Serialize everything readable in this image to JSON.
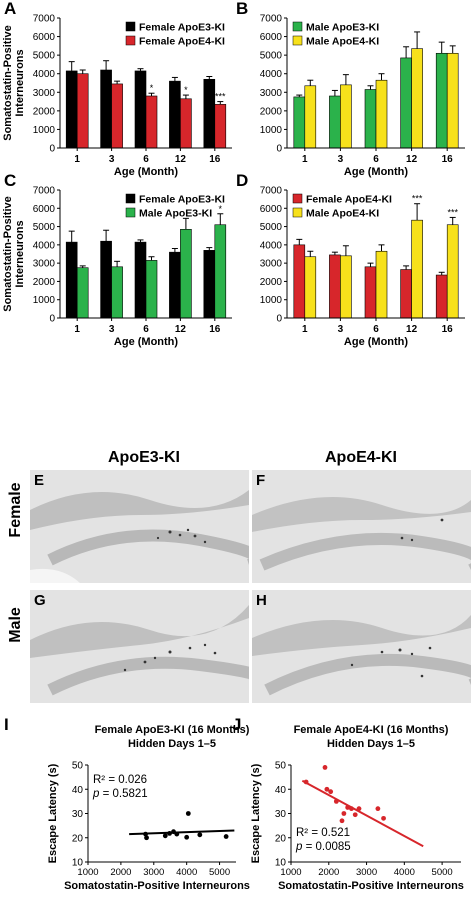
{
  "colors": {
    "female_e3": "#000000",
    "female_e4": "#d7262b",
    "male_e3": "#2bb24b",
    "male_e4": "#f7e11b",
    "scatter_e4": "#d7262b",
    "tissue_bg": "#e4e4e4"
  },
  "y_axis_label_line1": "Somatostatin-Positive",
  "y_axis_label_line2": "Interneurons",
  "micrographs": {
    "col_e3": "ApoE3-KI",
    "col_e4": "ApoE4-KI",
    "row_female": "Female",
    "row_male": "Male",
    "panels": [
      {
        "letter": "E",
        "row": "female",
        "col": "e3"
      },
      {
        "letter": "F",
        "row": "female",
        "col": "e4"
      },
      {
        "letter": "G",
        "row": "male",
        "col": "e3"
      },
      {
        "letter": "H",
        "row": "male",
        "col": "e4"
      }
    ]
  },
  "chart_data": [
    {
      "panel": "A",
      "type": "bar",
      "categories": [
        "1",
        "3",
        "6",
        "12",
        "16"
      ],
      "xlabel": "Age (Month)",
      "ylabel": "Somatostatin-Positive Interneurons",
      "ylim": [
        0,
        7000
      ],
      "yticks": [
        0,
        1000,
        2000,
        3000,
        4000,
        5000,
        6000,
        7000
      ],
      "legend": "top-right",
      "series": [
        {
          "name": "Female ApoE3-KI",
          "color_key": "female_e3",
          "values": [
            4150,
            4200,
            4150,
            3600,
            3700
          ],
          "errors": [
            500,
            500,
            120,
            200,
            150
          ]
        },
        {
          "name": "Female ApoE4-KI",
          "color_key": "female_e4",
          "values": [
            4000,
            3450,
            2800,
            2650,
            2350
          ],
          "errors": [
            200,
            150,
            150,
            200,
            150
          ]
        }
      ],
      "annotations": [
        {
          "category": "6",
          "series": 1,
          "text": "*"
        },
        {
          "category": "12",
          "series": 1,
          "text": "*"
        },
        {
          "category": "16",
          "series": 1,
          "text": "***"
        }
      ]
    },
    {
      "panel": "B",
      "type": "bar",
      "categories": [
        "1",
        "3",
        "6",
        "12",
        "16"
      ],
      "xlabel": "Age (Month)",
      "ylabel": "",
      "ylim": [
        0,
        7000
      ],
      "yticks": [
        0,
        1000,
        2000,
        3000,
        4000,
        5000,
        6000,
        7000
      ],
      "legend": "top-left",
      "series": [
        {
          "name": "Male ApoE3-KI",
          "color_key": "male_e3",
          "values": [
            2750,
            2800,
            3150,
            4850,
            5100
          ],
          "errors": [
            100,
            300,
            200,
            600,
            600
          ]
        },
        {
          "name": "Male ApoE4-KI",
          "color_key": "male_e4",
          "values": [
            3350,
            3400,
            3650,
            5350,
            5100
          ],
          "errors": [
            300,
            550,
            350,
            900,
            400
          ]
        }
      ],
      "annotations": []
    },
    {
      "panel": "C",
      "type": "bar",
      "categories": [
        "1",
        "3",
        "6",
        "12",
        "16"
      ],
      "xlabel": "Age (Month)",
      "ylabel": "Somatostatin-Positive Interneurons",
      "ylim": [
        0,
        7000
      ],
      "yticks": [
        0,
        1000,
        2000,
        3000,
        4000,
        5000,
        6000,
        7000
      ],
      "legend": "top-right",
      "series": [
        {
          "name": "Female ApoE3-KI",
          "color_key": "female_e3",
          "values": [
            4150,
            4200,
            4150,
            3600,
            3700
          ],
          "errors": [
            600,
            600,
            120,
            200,
            150
          ]
        },
        {
          "name": "Male ApoE3-KI",
          "color_key": "male_e3",
          "values": [
            2750,
            2800,
            3150,
            4850,
            5100
          ],
          "errors": [
            100,
            300,
            200,
            600,
            600
          ]
        }
      ],
      "annotations": [
        {
          "category": "16",
          "series": 1,
          "text": "*"
        }
      ]
    },
    {
      "panel": "D",
      "type": "bar",
      "categories": [
        "1",
        "3",
        "6",
        "12",
        "16"
      ],
      "xlabel": "Age (Month)",
      "ylabel": "",
      "ylim": [
        0,
        7000
      ],
      "yticks": [
        0,
        1000,
        2000,
        3000,
        4000,
        5000,
        6000,
        7000
      ],
      "legend": "top-left",
      "series": [
        {
          "name": "Female ApoE4-KI",
          "color_key": "female_e4",
          "values": [
            4000,
            3450,
            2800,
            2650,
            2350
          ],
          "errors": [
            300,
            150,
            200,
            200,
            150
          ]
        },
        {
          "name": "Male ApoE4-KI",
          "color_key": "male_e4",
          "values": [
            3350,
            3400,
            3650,
            5350,
            5100
          ],
          "errors": [
            300,
            550,
            350,
            900,
            400
          ]
        }
      ],
      "annotations": [
        {
          "category": "12",
          "series": 1,
          "text": "***"
        },
        {
          "category": "16",
          "series": 1,
          "text": "***"
        }
      ]
    },
    {
      "panel": "I",
      "type": "scatter",
      "title_line1": "Female ApoE3-KI (16 Months)",
      "title_line2": "Hidden Days 1–5",
      "xlabel": "Somatostatin-Positive Interneurons",
      "ylabel": "Escape Latency (s)",
      "xlim": [
        1000,
        5500
      ],
      "xticks": [
        1000,
        2000,
        3000,
        4000,
        5000
      ],
      "ylim": [
        10,
        50
      ],
      "yticks": [
        10,
        20,
        30,
        40,
        50
      ],
      "color_key": "female_e3",
      "stat_r2": "R² = 0.026",
      "stat_p_prefix": "p",
      "stat_p_value": " = 0.5821",
      "points": [
        [
          2750,
          21.5
        ],
        [
          2780,
          20
        ],
        [
          3350,
          20.8
        ],
        [
          3480,
          21.8
        ],
        [
          3600,
          22.5
        ],
        [
          3700,
          21.5
        ],
        [
          4000,
          20.2
        ],
        [
          4050,
          30
        ],
        [
          4400,
          21.2
        ],
        [
          5200,
          20.5
        ]
      ],
      "fit": [
        [
          2250,
          21.5
        ],
        [
          5450,
          23.0
        ]
      ]
    },
    {
      "panel": "J",
      "type": "scatter",
      "title_line1": "Female ApoE4-KI (16 Months)",
      "title_line2": "Hidden Days 1–5",
      "xlabel": "Somatostatin-Positive Interneurons",
      "ylabel": "Escape Latency (s)",
      "xlim": [
        1000,
        5500
      ],
      "xticks": [
        1000,
        2000,
        3000,
        4000,
        5000
      ],
      "ylim": [
        10,
        50
      ],
      "yticks": [
        10,
        20,
        30,
        40,
        50
      ],
      "color_key": "scatter_e4",
      "stat_r2": "R² = 0.521",
      "stat_p_prefix": "p",
      "stat_p_value": " = 0.0085",
      "points": [
        [
          1400,
          43
        ],
        [
          1900,
          49
        ],
        [
          1950,
          40
        ],
        [
          2050,
          39
        ],
        [
          2200,
          35
        ],
        [
          2350,
          27
        ],
        [
          2400,
          30
        ],
        [
          2500,
          32.5
        ],
        [
          2600,
          32
        ],
        [
          2700,
          29.5
        ],
        [
          2800,
          32
        ],
        [
          3300,
          32
        ],
        [
          3450,
          28
        ]
      ],
      "fit": [
        [
          1300,
          43.5
        ],
        [
          4500,
          16.5
        ]
      ]
    }
  ]
}
